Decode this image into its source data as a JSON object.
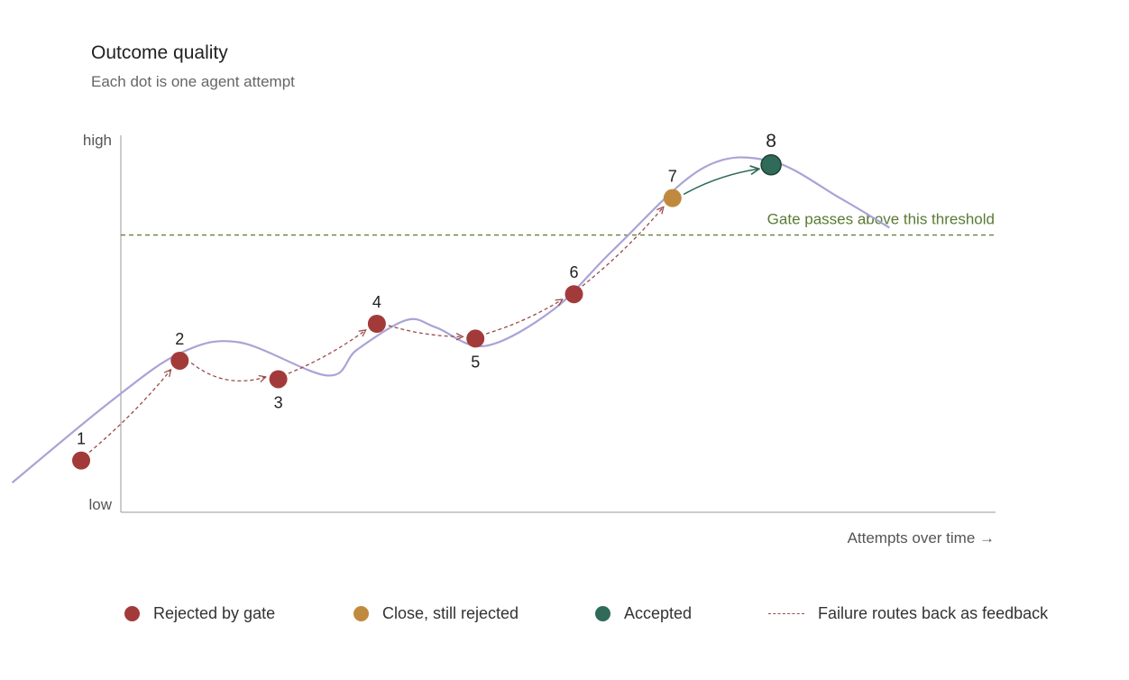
{
  "title": "Outcome quality",
  "subtitle": "Each dot is one agent attempt",
  "colors": {
    "rejected": "#a33a3a",
    "close": "#c08a3e",
    "accepted": "#2f6b58",
    "curve": "#aaa3d6",
    "threshold": "#5a7a34",
    "feedback": "#9a4b4b",
    "axis": "#999999"
  },
  "chart_data": {
    "type": "scatter",
    "title": "Outcome quality",
    "subtitle": "Each dot is one agent attempt",
    "xlabel": "Attempts over time →",
    "y_tick_labels": {
      "high": "high",
      "low": "low"
    },
    "threshold": {
      "value": 0.75,
      "label": "Gate passes above this threshold"
    },
    "points": [
      {
        "label": "1",
        "attempt": 1,
        "quality": 0.14,
        "status": "rejected"
      },
      {
        "label": "2",
        "attempt": 2,
        "quality": 0.41,
        "status": "rejected"
      },
      {
        "label": "3",
        "attempt": 3,
        "quality": 0.36,
        "status": "rejected"
      },
      {
        "label": "4",
        "attempt": 4,
        "quality": 0.51,
        "status": "rejected"
      },
      {
        "label": "5",
        "attempt": 5,
        "quality": 0.47,
        "status": "rejected"
      },
      {
        "label": "6",
        "attempt": 6,
        "quality": 0.59,
        "status": "rejected"
      },
      {
        "label": "7",
        "attempt": 7,
        "quality": 0.85,
        "status": "close"
      },
      {
        "label": "8",
        "attempt": 8,
        "quality": 0.94,
        "status": "accepted"
      }
    ],
    "trend_curve": [
      {
        "attempt": 0.3,
        "quality": 0.08
      },
      {
        "attempt": 1.3,
        "quality": 0.3
      },
      {
        "attempt": 2.0,
        "quality": 0.43
      },
      {
        "attempt": 2.6,
        "quality": 0.46
      },
      {
        "attempt": 3.5,
        "quality": 0.37
      },
      {
        "attempt": 3.8,
        "quality": 0.44
      },
      {
        "attempt": 4.3,
        "quality": 0.52
      },
      {
        "attempt": 4.6,
        "quality": 0.5
      },
      {
        "attempt": 5.1,
        "quality": 0.45
      },
      {
        "attempt": 5.8,
        "quality": 0.55
      },
      {
        "attempt": 6.4,
        "quality": 0.71
      },
      {
        "attempt": 7.3,
        "quality": 0.93
      },
      {
        "attempt": 8.0,
        "quality": 0.95
      },
      {
        "attempt": 8.7,
        "quality": 0.85
      },
      {
        "attempt": 9.2,
        "quality": 0.77
      }
    ],
    "grid": false,
    "legend_position": "bottom"
  },
  "legend": [
    {
      "label": "Rejected by gate",
      "kind": "dot",
      "color_key": "rejected"
    },
    {
      "label": "Close, still rejected",
      "kind": "dot",
      "color_key": "close"
    },
    {
      "label": "Accepted",
      "kind": "dot",
      "color_key": "accepted"
    },
    {
      "label": "Failure routes back as feedback",
      "kind": "dash",
      "color_key": "feedback"
    }
  ]
}
